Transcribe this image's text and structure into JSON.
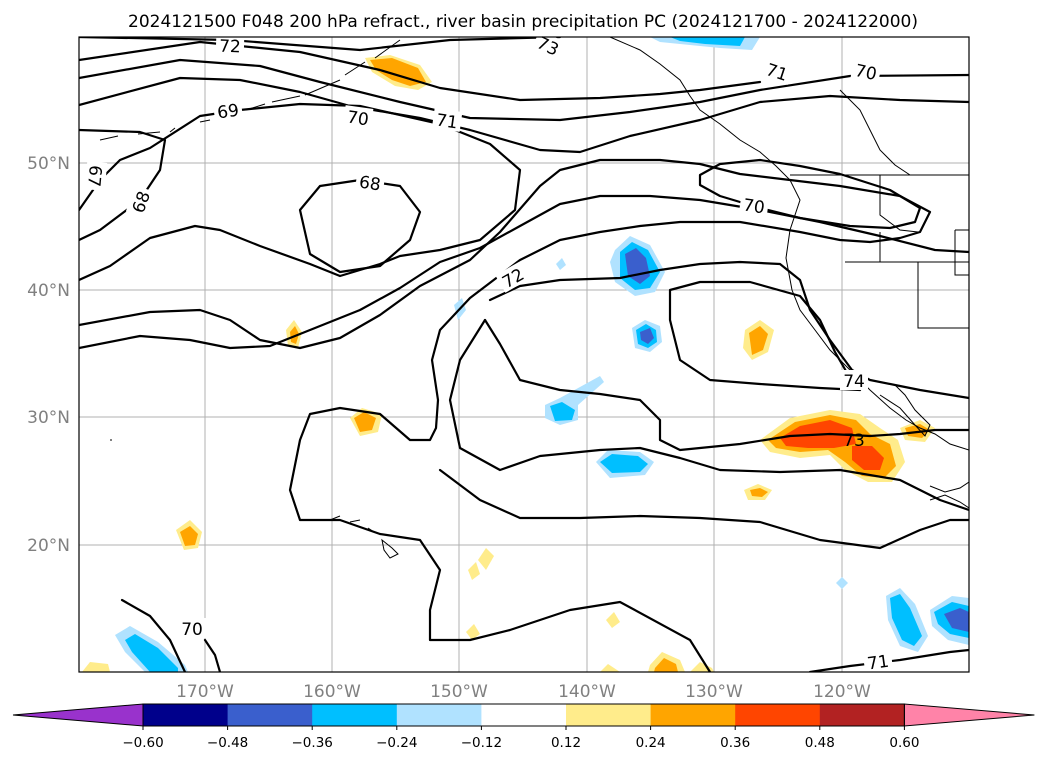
{
  "title": "2024121500 F048 200 hPa refract., river basin precipitation PC (2024121700 - 2024122000)",
  "map": {
    "lat_labels": [
      "50°N",
      "40°N",
      "30°N",
      "20°N"
    ],
    "lon_labels": [
      "170°W",
      "160°W",
      "150°W",
      "140°W",
      "130°W",
      "120°W"
    ]
  },
  "contour_labels": [
    "72",
    "73",
    "71",
    "70",
    "69",
    "70",
    "71",
    "67",
    "68",
    "68",
    "70",
    "72",
    "74",
    "73",
    "70",
    "71"
  ],
  "colorbar": {
    "tick_labels": [
      "−0.60",
      "−0.48",
      "−0.36",
      "−0.24",
      "−0.12",
      "0.12",
      "0.24",
      "0.36",
      "0.48",
      "0.60"
    ],
    "colors": [
      "#9932cc",
      "#00008b",
      "#3a5fcd",
      "#00bfff",
      "#b0e2ff",
      "#ffffff",
      "#ffec8b",
      "#ffa500",
      "#ff4500",
      "#b22222",
      "#ff83a8"
    ]
  }
}
